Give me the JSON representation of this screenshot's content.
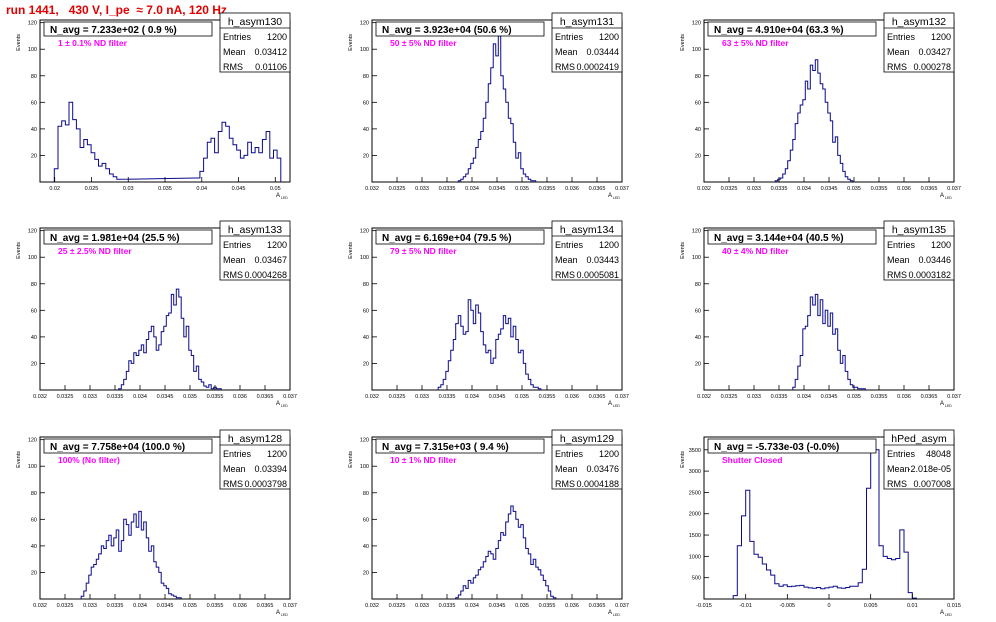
{
  "header": {
    "title": "run 1441,   430 V, I_pe  ≈ 7.0 nA, 120 Hz"
  },
  "chart_data": [
    {
      "type": "bar",
      "name": "h_asym130",
      "title": "N_avg = 7.233e+02 ( 0.9 %)",
      "annotation": "1 ± 0.1% ND filter",
      "xlabel": "A_LED",
      "ylabel": "Events",
      "xlim": [
        0.018,
        0.052
      ],
      "ylim": [
        0,
        122
      ],
      "xticks": [
        "0.02",
        "0.025",
        "0.03",
        "0.035",
        "0.04",
        "0.045",
        "0.05"
      ],
      "xtick_values": [
        0.02,
        0.025,
        0.03,
        0.035,
        0.04,
        0.045,
        0.05
      ],
      "yticks": [
        20,
        40,
        60,
        80,
        100,
        120
      ],
      "stats": [
        [
          "Entries",
          "1200"
        ],
        [
          "Mean",
          "0.03412"
        ],
        [
          "RMS",
          "0.01106"
        ]
      ],
      "x": [
        0.0202,
        0.0207,
        0.0212,
        0.0217,
        0.0222,
        0.0227,
        0.0232,
        0.0237,
        0.0242,
        0.0247,
        0.0252,
        0.0257,
        0.0262,
        0.0267,
        0.0272,
        0.0277,
        0.0282,
        0.0287,
        0.0395,
        0.04,
        0.0405,
        0.041,
        0.0415,
        0.042,
        0.0425,
        0.043,
        0.0435,
        0.044,
        0.0445,
        0.045,
        0.0455,
        0.046,
        0.0465,
        0.047,
        0.0475,
        0.048,
        0.0485,
        0.049,
        0.0495,
        0.05,
        0.0505
      ],
      "values": [
        10,
        42,
        46,
        43,
        60,
        47,
        40,
        26,
        32,
        28,
        22,
        17,
        12,
        14,
        10,
        6,
        4,
        2,
        3,
        8,
        18,
        30,
        33,
        22,
        38,
        45,
        42,
        33,
        28,
        24,
        18,
        20,
        30,
        22,
        26,
        22,
        32,
        38,
        18,
        24,
        18
      ]
    },
    {
      "type": "bar",
      "name": "h_asym131",
      "title": "N_avg = 3.923e+04 (50.6 %)",
      "annotation": "50 ± 5% ND filter",
      "xlabel": "A_LED",
      "ylabel": "Events",
      "xlim": [
        0.032,
        0.037
      ],
      "ylim": [
        0,
        122
      ],
      "xticks": [
        "0.032",
        "0.0325",
        "0.033",
        "0.0335",
        "0.034",
        "0.0345",
        "0.035",
        "0.0355",
        "0.036",
        "0.0365",
        "0.037"
      ],
      "xtick_values": [
        0.032,
        0.0325,
        0.033,
        0.0335,
        0.034,
        0.0345,
        0.035,
        0.0355,
        0.036,
        0.0365,
        0.037
      ],
      "yticks": [
        20,
        40,
        60,
        80,
        100,
        120
      ],
      "stats": [
        [
          "Entries",
          "1200"
        ],
        [
          "Mean",
          "0.03444"
        ],
        [
          "RMS",
          "0.0002419"
        ]
      ],
      "x": [
        0.03375,
        0.0338,
        0.03385,
        0.0339,
        0.03395,
        0.034,
        0.03405,
        0.0341,
        0.03415,
        0.0342,
        0.03425,
        0.0343,
        0.03435,
        0.0344,
        0.03445,
        0.0345,
        0.03455,
        0.0346,
        0.03465,
        0.0347,
        0.03475,
        0.0348,
        0.03485,
        0.0349,
        0.03495,
        0.035,
        0.03505,
        0.0351,
        0.03515,
        0.0352,
        0.03525
      ],
      "values": [
        1,
        2,
        4,
        6,
        10,
        14,
        18,
        26,
        32,
        38,
        48,
        60,
        74,
        86,
        104,
        95,
        110,
        80,
        70,
        60,
        48,
        44,
        30,
        18,
        22,
        10,
        6,
        4,
        2,
        1,
        1
      ]
    },
    {
      "type": "bar",
      "name": "h_asym132",
      "title": "N_avg = 4.910e+04 (63.3 %)",
      "annotation": "63 ± 5% ND filter",
      "xlabel": "A_LED",
      "ylabel": "Events",
      "xlim": [
        0.032,
        0.037
      ],
      "ylim": [
        0,
        122
      ],
      "xticks": [
        "0.032",
        "0.0325",
        "0.033",
        "0.0335",
        "0.034",
        "0.0345",
        "0.035",
        "0.0355",
        "0.036",
        "0.0365",
        "0.037"
      ],
      "xtick_values": [
        0.032,
        0.0325,
        0.033,
        0.0335,
        0.034,
        0.0345,
        0.035,
        0.0355,
        0.036,
        0.0365,
        0.037
      ],
      "yticks": [
        20,
        40,
        60,
        80,
        100,
        120
      ],
      "stats": [
        [
          "Entries",
          "1200"
        ],
        [
          "Mean",
          "0.03427"
        ],
        [
          "RMS",
          "0.000278"
        ]
      ],
      "x": [
        0.03345,
        0.0335,
        0.03355,
        0.0336,
        0.03365,
        0.0337,
        0.03375,
        0.0338,
        0.03385,
        0.0339,
        0.03395,
        0.034,
        0.03405,
        0.0341,
        0.03415,
        0.0342,
        0.03425,
        0.0343,
        0.03435,
        0.0344,
        0.03445,
        0.0345,
        0.03455,
        0.0346,
        0.03465,
        0.0347,
        0.03475,
        0.0348,
        0.03485,
        0.0349,
        0.03495
      ],
      "values": [
        1,
        2,
        3,
        6,
        10,
        16,
        24,
        32,
        44,
        52,
        58,
        62,
        76,
        70,
        88,
        84,
        92,
        82,
        74,
        70,
        60,
        52,
        46,
        30,
        34,
        20,
        14,
        8,
        4,
        2,
        1
      ]
    },
    {
      "type": "bar",
      "name": "h_asym133",
      "title": "N_avg = 1.981e+04 (25.5 %)",
      "annotation": "25 ± 2.5% ND filter",
      "xlabel": "A_LED",
      "ylabel": "Events",
      "xlim": [
        0.032,
        0.037
      ],
      "ylim": [
        0,
        122
      ],
      "xticks": [
        "0.032",
        "0.0325",
        "0.033",
        "0.0335",
        "0.034",
        "0.0345",
        "0.035",
        "0.0355",
        "0.036",
        "0.0365",
        "0.037"
      ],
      "xtick_values": [
        0.032,
        0.0325,
        0.033,
        0.0335,
        0.034,
        0.0345,
        0.035,
        0.0355,
        0.036,
        0.0365,
        0.037
      ],
      "yticks": [
        20,
        40,
        60,
        80,
        100,
        120
      ],
      "stats": [
        [
          "Entries",
          "1200"
        ],
        [
          "Mean",
          "0.03467"
        ],
        [
          "RMS",
          "0.0004268"
        ]
      ],
      "x": [
        0.0336,
        0.03365,
        0.0337,
        0.03375,
        0.0338,
        0.03385,
        0.0339,
        0.03395,
        0.034,
        0.03405,
        0.0341,
        0.03415,
        0.0342,
        0.03425,
        0.0343,
        0.03435,
        0.0344,
        0.03445,
        0.0345,
        0.03455,
        0.0346,
        0.03465,
        0.0347,
        0.03475,
        0.0348,
        0.03485,
        0.0349,
        0.03495,
        0.035,
        0.03505,
        0.0351,
        0.03515,
        0.0352,
        0.03525,
        0.0353,
        0.03535,
        0.0354,
        0.03545,
        0.0355,
        0.03555,
        0.0356
      ],
      "values": [
        1,
        4,
        8,
        14,
        22,
        20,
        28,
        26,
        30,
        34,
        28,
        38,
        44,
        48,
        40,
        30,
        34,
        44,
        48,
        56,
        58,
        72,
        64,
        76,
        70,
        54,
        40,
        48,
        30,
        26,
        14,
        18,
        8,
        6,
        3,
        2,
        4,
        1,
        2,
        1,
        1
      ]
    },
    {
      "type": "bar",
      "name": "h_asym134",
      "title": "N_avg = 6.169e+04 (79.5 %)",
      "annotation": "79 ± 5% ND filter",
      "xlabel": "A_LED",
      "ylabel": "Events",
      "xlim": [
        0.032,
        0.037
      ],
      "ylim": [
        0,
        122
      ],
      "xticks": [
        "0.032",
        "0.0325",
        "0.033",
        "0.0335",
        "0.034",
        "0.0345",
        "0.035",
        "0.0355",
        "0.036",
        "0.0365",
        "0.037"
      ],
      "xtick_values": [
        0.032,
        0.0325,
        0.033,
        0.0335,
        0.034,
        0.0345,
        0.035,
        0.0355,
        0.036,
        0.0365,
        0.037
      ],
      "yticks": [
        20,
        40,
        60,
        80,
        100,
        120
      ],
      "stats": [
        [
          "Entries",
          "1200"
        ],
        [
          "Mean",
          "0.03443"
        ],
        [
          "RMS",
          "0.0005081"
        ]
      ],
      "x": [
        0.03335,
        0.0334,
        0.03345,
        0.0335,
        0.03355,
        0.0336,
        0.03365,
        0.0337,
        0.03375,
        0.0338,
        0.03385,
        0.0339,
        0.03395,
        0.034,
        0.03405,
        0.0341,
        0.03415,
        0.0342,
        0.03425,
        0.0343,
        0.03435,
        0.0344,
        0.03445,
        0.0345,
        0.03455,
        0.0346,
        0.03465,
        0.0347,
        0.03475,
        0.0348,
        0.03485,
        0.0349,
        0.03495,
        0.035,
        0.03505,
        0.0351,
        0.03515,
        0.0352,
        0.03525,
        0.0353,
        0.03535
      ],
      "values": [
        2,
        4,
        8,
        14,
        22,
        30,
        38,
        50,
        56,
        48,
        42,
        44,
        68,
        60,
        50,
        64,
        58,
        44,
        34,
        28,
        30,
        20,
        24,
        38,
        42,
        46,
        56,
        50,
        54,
        40,
        48,
        38,
        28,
        30,
        20,
        12,
        8,
        4,
        2,
        2,
        1
      ]
    },
    {
      "type": "bar",
      "name": "h_asym135",
      "title": "N_avg = 3.144e+04 (40.5 %)",
      "annotation": "40 ± 4% ND filter",
      "xlabel": "A_LED",
      "ylabel": "Events",
      "xlim": [
        0.032,
        0.037
      ],
      "ylim": [
        0,
        122
      ],
      "xticks": [
        "0.032",
        "0.0325",
        "0.033",
        "0.0335",
        "0.034",
        "0.0345",
        "0.035",
        "0.0355",
        "0.036",
        "0.0365",
        "0.037"
      ],
      "xtick_values": [
        0.032,
        0.0325,
        0.033,
        0.0335,
        0.034,
        0.0345,
        0.035,
        0.0355,
        0.036,
        0.0365,
        0.037
      ],
      "yticks": [
        20,
        40,
        60,
        80,
        100,
        120
      ],
      "stats": [
        [
          "Entries",
          "1200"
        ],
        [
          "Mean",
          "0.03446"
        ],
        [
          "RMS",
          "0.0003182"
        ]
      ],
      "x": [
        0.0338,
        0.03385,
        0.0339,
        0.03395,
        0.034,
        0.03405,
        0.0341,
        0.03415,
        0.0342,
        0.03425,
        0.0343,
        0.03435,
        0.0344,
        0.03445,
        0.0345,
        0.03455,
        0.0346,
        0.03465,
        0.0347,
        0.03475,
        0.0348,
        0.03485,
        0.0349,
        0.03495,
        0.035,
        0.03505,
        0.0351,
        0.03515,
        0.0352
      ],
      "values": [
        2,
        8,
        18,
        26,
        46,
        48,
        56,
        70,
        64,
        72,
        56,
        68,
        50,
        60,
        48,
        58,
        42,
        46,
        30,
        20,
        26,
        14,
        8,
        4,
        2,
        2,
        1,
        1,
        1
      ]
    },
    {
      "type": "bar",
      "name": "h_asym128",
      "title": "N_avg = 7.758e+04 (100.0 %)",
      "annotation": "100% (No filter)",
      "xlabel": "A_LED",
      "ylabel": "Events",
      "xlim": [
        0.032,
        0.037
      ],
      "ylim": [
        0,
        122
      ],
      "xticks": [
        "0.032",
        "0.0325",
        "0.033",
        "0.0335",
        "0.034",
        "0.0345",
        "0.035",
        "0.0355",
        "0.036",
        "0.0365",
        "0.037"
      ],
      "xtick_values": [
        0.032,
        0.0325,
        0.033,
        0.0335,
        0.034,
        0.0345,
        0.035,
        0.0355,
        0.036,
        0.0365,
        0.037
      ],
      "yticks": [
        20,
        40,
        60,
        80,
        100,
        120
      ],
      "stats": [
        [
          "Entries",
          "1200"
        ],
        [
          "Mean",
          "0.03394"
        ],
        [
          "RMS",
          "0.0003798"
        ]
      ],
      "x": [
        0.03285,
        0.0329,
        0.03295,
        0.033,
        0.03305,
        0.0331,
        0.03315,
        0.0332,
        0.03325,
        0.0333,
        0.03335,
        0.0334,
        0.03345,
        0.0335,
        0.03355,
        0.0336,
        0.03365,
        0.0337,
        0.03375,
        0.0338,
        0.03385,
        0.0339,
        0.03395,
        0.034,
        0.03405,
        0.0341,
        0.03415,
        0.0342,
        0.03425,
        0.0343,
        0.03435,
        0.0344,
        0.03445,
        0.0345,
        0.03455,
        0.0346,
        0.03465,
        0.0347,
        0.03475,
        0.0348
      ],
      "values": [
        2,
        6,
        12,
        18,
        24,
        26,
        30,
        34,
        40,
        38,
        44,
        48,
        40,
        46,
        52,
        36,
        44,
        60,
        56,
        48,
        58,
        64,
        54,
        66,
        52,
        58,
        46,
        36,
        40,
        28,
        24,
        20,
        12,
        10,
        8,
        4,
        3,
        2,
        1,
        1
      ]
    },
    {
      "type": "bar",
      "name": "h_asym129",
      "title": "N_avg = 7.315e+03 ( 9.4 %)",
      "annotation": "10 ± 1% ND filter",
      "xlabel": "A_LED",
      "ylabel": "Events",
      "xlim": [
        0.032,
        0.037
      ],
      "ylim": [
        0,
        122
      ],
      "xticks": [
        "0.032",
        "0.0325",
        "0.033",
        "0.0335",
        "0.034",
        "0.0345",
        "0.035",
        "0.0355",
        "0.036",
        "0.0365",
        "0.037"
      ],
      "xtick_values": [
        0.032,
        0.0325,
        0.033,
        0.0335,
        0.034,
        0.0345,
        0.035,
        0.0355,
        0.036,
        0.0365,
        0.037
      ],
      "yticks": [
        20,
        40,
        60,
        80,
        100,
        120
      ],
      "stats": [
        [
          "Entries",
          "1200"
        ],
        [
          "Mean",
          "0.03476"
        ],
        [
          "RMS",
          "0.0004188"
        ]
      ],
      "x": [
        0.0337,
        0.03375,
        0.0338,
        0.03385,
        0.0339,
        0.03395,
        0.034,
        0.03405,
        0.0341,
        0.03415,
        0.0342,
        0.03425,
        0.0343,
        0.03435,
        0.0344,
        0.03445,
        0.0345,
        0.03455,
        0.0346,
        0.03465,
        0.0347,
        0.03475,
        0.0348,
        0.03485,
        0.0349,
        0.03495,
        0.035,
        0.03505,
        0.0351,
        0.03515,
        0.0352,
        0.03525,
        0.0353,
        0.03535,
        0.0354,
        0.03545,
        0.0355,
        0.03555,
        0.0356,
        0.03565
      ],
      "values": [
        1,
        3,
        6,
        10,
        8,
        14,
        12,
        16,
        18,
        22,
        24,
        28,
        32,
        36,
        34,
        30,
        38,
        44,
        50,
        48,
        58,
        64,
        70,
        66,
        60,
        54,
        56,
        46,
        38,
        34,
        26,
        30,
        24,
        22,
        18,
        14,
        10,
        6,
        2,
        1
      ]
    },
    {
      "type": "bar",
      "name": "hPed_asym",
      "title": "N_avg = -5.733e-03 (-0.0%)",
      "annotation": "Shutter Closed",
      "xlabel": "A_LED",
      "ylabel": "Events",
      "xlim": [
        -0.015,
        0.015
      ],
      "ylim": [
        0,
        3800
      ],
      "xticks": [
        "-0.015",
        "-0.01",
        "-0.005",
        "0",
        "0.005",
        "0.01",
        "0.015"
      ],
      "xtick_values": [
        -0.015,
        -0.01,
        -0.005,
        0,
        0.005,
        0.01,
        0.015
      ],
      "yticks": [
        500,
        1000,
        1500,
        2000,
        2500,
        3000,
        3500
      ],
      "stats": [
        [
          "Entries",
          "48048"
        ],
        [
          "Mean",
          "-2.018e-05"
        ],
        [
          "RMS",
          "0.007008"
        ]
      ],
      "x": [
        -0.01125,
        -0.01075,
        -0.01025,
        -0.00975,
        -0.00925,
        -0.00875,
        -0.00825,
        -0.00775,
        -0.00725,
        -0.00675,
        -0.00625,
        -0.00575,
        -0.00525,
        -0.00475,
        -0.00425,
        -0.00375,
        -0.00325,
        -0.00275,
        -0.00225,
        -0.00175,
        -0.00125,
        -0.00075,
        -0.00025,
        0.00025,
        0.00075,
        0.00125,
        0.00175,
        0.00225,
        0.00275,
        0.00325,
        0.00375,
        0.00425,
        0.00475,
        0.00525,
        0.00575,
        0.00625,
        0.00675,
        0.00725,
        0.00775,
        0.00825,
        0.00875,
        0.00925,
        0.00975,
        0.01025
      ],
      "values": [
        80,
        1250,
        1950,
        2550,
        1350,
        1050,
        980,
        820,
        680,
        560,
        360,
        300,
        330,
        290,
        300,
        310,
        320,
        280,
        260,
        250,
        270,
        240,
        260,
        280,
        300,
        260,
        250,
        270,
        300,
        300,
        380,
        700,
        2600,
        3700,
        3500,
        1250,
        1000,
        950,
        920,
        950,
        1620,
        1100,
        150,
        20
      ]
    }
  ]
}
